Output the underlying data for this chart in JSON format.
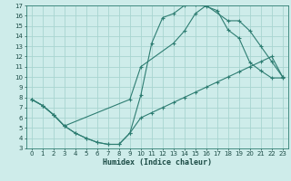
{
  "xlabel": "Humidex (Indice chaleur)",
  "bg_color": "#ceecea",
  "grid_color": "#a8d5d0",
  "line_color": "#2e7d72",
  "xlim": [
    -0.5,
    23.5
  ],
  "ylim": [
    3,
    17
  ],
  "xticks": [
    0,
    1,
    2,
    3,
    4,
    5,
    6,
    7,
    8,
    9,
    10,
    11,
    12,
    13,
    14,
    15,
    16,
    17,
    18,
    19,
    20,
    21,
    22,
    23
  ],
  "yticks": [
    3,
    4,
    5,
    6,
    7,
    8,
    9,
    10,
    11,
    12,
    13,
    14,
    15,
    16,
    17
  ],
  "line1_x": [
    0,
    1,
    2,
    3,
    4,
    5,
    6,
    7,
    8,
    9,
    10,
    11,
    12,
    13,
    14,
    15,
    16,
    17,
    18,
    19,
    20,
    21,
    22,
    23
  ],
  "line1_y": [
    7.8,
    7.2,
    6.3,
    5.2,
    4.5,
    4.0,
    3.6,
    3.4,
    3.4,
    4.5,
    8.2,
    13.3,
    15.8,
    16.2,
    17.0,
    17.1,
    16.9,
    16.5,
    14.6,
    13.8,
    11.4,
    10.6,
    9.9,
    9.9
  ],
  "line2_x": [
    0,
    1,
    2,
    3,
    9,
    10,
    13,
    14,
    15,
    16,
    18,
    19,
    20,
    21,
    22,
    23
  ],
  "line2_y": [
    7.8,
    7.2,
    6.3,
    5.2,
    7.8,
    11.0,
    13.3,
    14.5,
    16.2,
    17.0,
    15.5,
    15.5,
    14.5,
    13.0,
    11.5,
    10.0
  ],
  "line3_x": [
    0,
    1,
    2,
    3,
    4,
    5,
    6,
    7,
    8,
    9,
    10,
    11,
    12,
    13,
    14,
    15,
    16,
    17,
    18,
    19,
    20,
    21,
    22,
    23
  ],
  "line3_y": [
    7.8,
    7.2,
    6.3,
    5.2,
    4.5,
    4.0,
    3.6,
    3.4,
    3.4,
    4.5,
    6.0,
    6.5,
    7.0,
    7.5,
    8.0,
    8.5,
    9.0,
    9.5,
    10.0,
    10.5,
    11.0,
    11.5,
    12.0,
    10.0
  ]
}
